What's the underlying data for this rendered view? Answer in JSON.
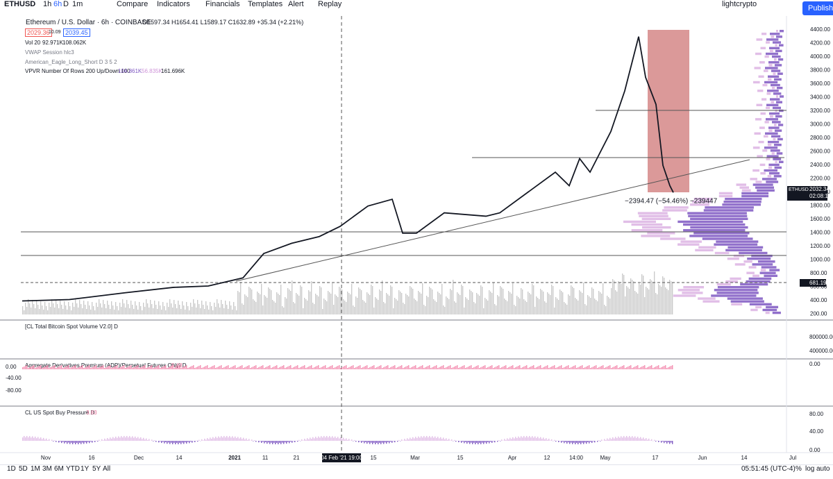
{
  "toolbar": {
    "symbol": "ETHUSD",
    "intervals": [
      "1h",
      "6h",
      "D",
      "1m"
    ],
    "buttons": [
      "Compare",
      "Indicators",
      "Financials",
      "Templates",
      "Alert",
      "Replay"
    ],
    "user": "lightcrypto",
    "publish": "Publish"
  },
  "legend": {
    "title": "Ethereum / U.S. Dollar · 6h · COINBASE",
    "ohlc": "O1597.34 H1654.41 L1589.17 C1632.89 +35.34 (+2.21%)",
    "bid": "2029.36",
    "spread": "10.09",
    "ask": "2039.45",
    "volume": {
      "name": "Vol 20",
      "v1": "92.971K",
      "v2": "108.062K"
    },
    "vwap": "VWAP Session hlc3",
    "eagle": "American_Eagle_Long_Short D 3 5 2",
    "vpvr": {
      "name": "VPVR Number Of Rows 200 Up/Down 100",
      "up": "104.861K",
      "down": "56.835K",
      "total": "161.696K"
    }
  },
  "price_axis": [
    "4400.00",
    "4200.00",
    "4000.00",
    "3800.00",
    "3600.00",
    "3400.00",
    "3200.00",
    "3000.00",
    "2800.00",
    "2600.00",
    "2400.00",
    "2200.00",
    "2000.00",
    "1800.00",
    "1600.00",
    "1400.00",
    "1200.00",
    "1000.00",
    "800.00",
    "600.00",
    "400.00",
    "200.00"
  ],
  "price_tag": {
    "symbol": "ETHUSD",
    "price": "2032.34",
    "countdown": "02:08:15"
  },
  "level_tag": "681.19",
  "measure": "−2394.47 (−54.46%) −239447",
  "panes": [
    {
      "title": "[CL Total Bitcoin Spot Volume V2.0] D",
      "axis": [
        "800000.00",
        "400000.00",
        "0.00"
      ]
    },
    {
      "title": "Aggregate Derivatives Premium (ADP)(Perpetual Futures Only) D",
      "value": "5.48",
      "axis": [
        "0.00",
        "-40.00",
        "-80.00"
      ]
    },
    {
      "title": "CL US Spot Buy Pressure D",
      "value": "3.83",
      "axis": [
        "80.00",
        "40.00",
        "0.00"
      ]
    }
  ],
  "time_axis": [
    "Nov",
    "16",
    "Dec",
    "14",
    "2021",
    "11",
    "21",
    "04 Feb '21  19:00",
    "15",
    "Mar",
    "15",
    "Apr",
    "12",
    "14:00",
    "May",
    "17",
    "Jun",
    "14",
    "Jul"
  ],
  "bottombar": {
    "ranges": [
      "1D",
      "5D",
      "1M",
      "3M",
      "6M",
      "YTD",
      "1Y",
      "5Y",
      "All"
    ],
    "clock": "05:51:45 (UTC-4)",
    "percent": "%",
    "log": "log",
    "auto": "auto"
  }
}
